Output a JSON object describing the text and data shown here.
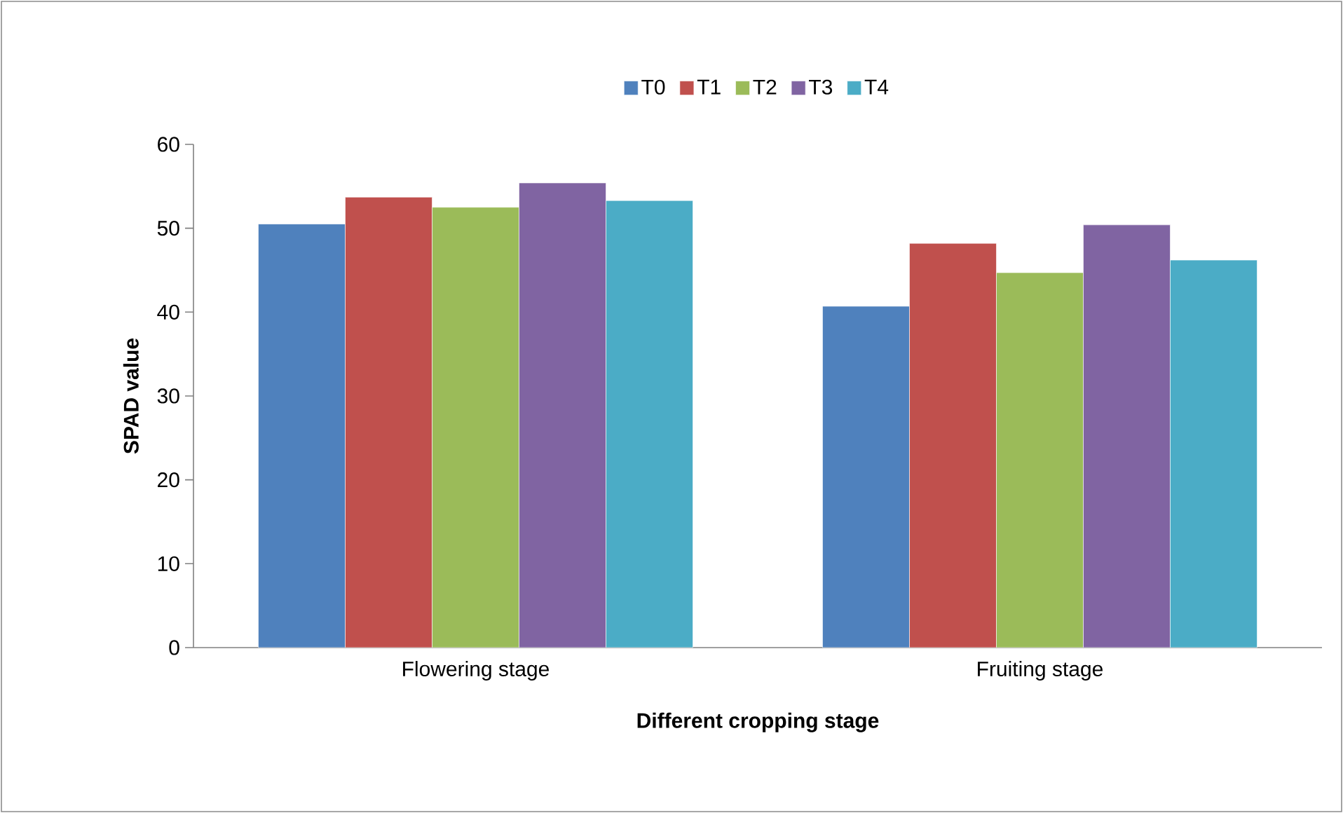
{
  "chart_data": {
    "type": "bar",
    "xlabel": "Different cropping stage",
    "ylabel": "SPAD value",
    "categories": [
      "Flowering stage",
      "Fruiting stage"
    ],
    "series": [
      {
        "name": "T0",
        "color": "#4f81bd",
        "values": [
          50.5,
          40.7
        ]
      },
      {
        "name": "T1",
        "color": "#c0504d",
        "values": [
          53.7,
          48.2
        ]
      },
      {
        "name": "T2",
        "color": "#9bbb59",
        "values": [
          52.5,
          44.7
        ]
      },
      {
        "name": "T3",
        "color": "#8064a2",
        "values": [
          55.4,
          50.4
        ]
      },
      {
        "name": "T4",
        "color": "#4bacc6",
        "values": [
          53.3,
          46.2
        ]
      }
    ],
    "ylim": [
      0,
      60
    ],
    "yticks": [
      0,
      10,
      20,
      30,
      40,
      50,
      60
    ],
    "grid": false,
    "legend": "top"
  }
}
